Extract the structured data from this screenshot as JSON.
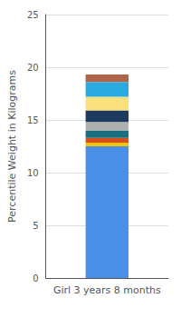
{
  "chart_data": {
    "type": "bar",
    "stacked": true,
    "categories": [
      "Girl 3 years 8 months"
    ],
    "ylabel": "Percentile Weight in Kilograms",
    "series": [
      {
        "color": "#4a8fe8",
        "values": [
          12.5
        ]
      },
      {
        "color": "#f5c400",
        "values": [
          0.35
        ]
      },
      {
        "color": "#d94e1f",
        "values": [
          0.45
        ]
      },
      {
        "color": "#1a6e7e",
        "values": [
          0.7
        ]
      },
      {
        "color": "#b0b0b0",
        "values": [
          0.8
        ]
      },
      {
        "color": "#1e3a5f",
        "values": [
          1.1
        ]
      },
      {
        "color": "#f9e07a",
        "values": [
          1.3
        ]
      },
      {
        "color": "#29abe2",
        "values": [
          1.4
        ]
      },
      {
        "color": "#b0644a",
        "values": [
          0.7
        ]
      }
    ],
    "ylim": [
      0,
      25
    ],
    "yticks": [
      0,
      5,
      10,
      15,
      20,
      25
    ],
    "grid": true
  }
}
